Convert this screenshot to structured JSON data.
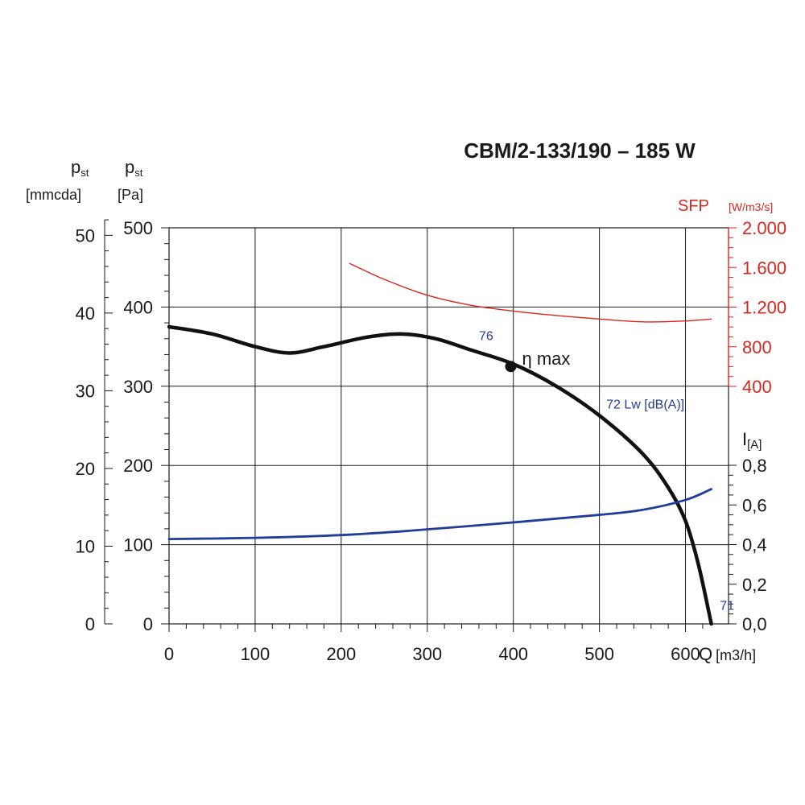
{
  "chart_data": {
    "type": "line",
    "title": "CBM/2-133/190 – 185 W",
    "x_axis": {
      "label": "Q",
      "unit": "[m3/h]",
      "range": [
        0,
        650
      ],
      "ticks": [
        "0",
        "100",
        "200",
        "300",
        "400",
        "500",
        "600"
      ]
    },
    "y_axis_pa": {
      "label": "p",
      "label_sub": "st",
      "unit": "[Pa]",
      "range": [
        0,
        500
      ],
      "ticks": [
        "0",
        "100",
        "200",
        "300",
        "400",
        "500"
      ]
    },
    "y_axis_mmcda": {
      "label": "p",
      "label_sub": "st",
      "unit": "[mmcda]",
      "ticks": [
        "0",
        "10",
        "20",
        "30",
        "40",
        "50"
      ]
    },
    "y_axis_sfp": {
      "label": "SFP",
      "unit": "[W/m3/s]",
      "range": [
        400,
        2000
      ],
      "ticks": [
        "400",
        "800",
        "1.200",
        "1.600",
        "2.000"
      ]
    },
    "y_axis_current": {
      "label": "I",
      "unit": "[A]",
      "range": [
        0,
        0.8
      ],
      "ticks": [
        "0,0",
        "0,2",
        "0,4",
        "0,6",
        "0,8"
      ]
    },
    "grid": true,
    "series": [
      {
        "role": "static-pressure",
        "axis": "pa",
        "color": "#111111",
        "points": [
          [
            0,
            375
          ],
          [
            50,
            366
          ],
          [
            100,
            350
          ],
          [
            140,
            342
          ],
          [
            180,
            350
          ],
          [
            230,
            362
          ],
          [
            270,
            366
          ],
          [
            310,
            360
          ],
          [
            350,
            346
          ],
          [
            400,
            328
          ],
          [
            450,
            300
          ],
          [
            500,
            263
          ],
          [
            550,
            215
          ],
          [
            580,
            172
          ],
          [
            600,
            130
          ],
          [
            615,
            75
          ],
          [
            630,
            0
          ]
        ]
      },
      {
        "role": "current",
        "axis": "current",
        "color": "#1f3d99",
        "points": [
          [
            0,
            0.428
          ],
          [
            100,
            0.434
          ],
          [
            200,
            0.448
          ],
          [
            280,
            0.47
          ],
          [
            400,
            0.512
          ],
          [
            500,
            0.55
          ],
          [
            550,
            0.575
          ],
          [
            600,
            0.625
          ],
          [
            630,
            0.68
          ]
        ]
      },
      {
        "role": "sfp",
        "axis": "sfp",
        "color": "#d9261c",
        "points": [
          [
            210,
            1640
          ],
          [
            250,
            1480
          ],
          [
            300,
            1320
          ],
          [
            350,
            1220
          ],
          [
            400,
            1160
          ],
          [
            450,
            1115
          ],
          [
            500,
            1080
          ],
          [
            530,
            1060
          ],
          [
            560,
            1050
          ],
          [
            600,
            1060
          ],
          [
            630,
            1080
          ]
        ]
      }
    ],
    "annotations": {
      "eta_max": {
        "label": "η max",
        "x": 397,
        "y": 325
      },
      "lw_76": {
        "label": "76",
        "x": 360,
        "y": 358
      },
      "lw_72": {
        "label": "72  Lw [dB(A)]",
        "x": 508,
        "y": 272
      },
      "lw_71": {
        "label": "71",
        "x": 640,
        "y": 18
      }
    }
  }
}
